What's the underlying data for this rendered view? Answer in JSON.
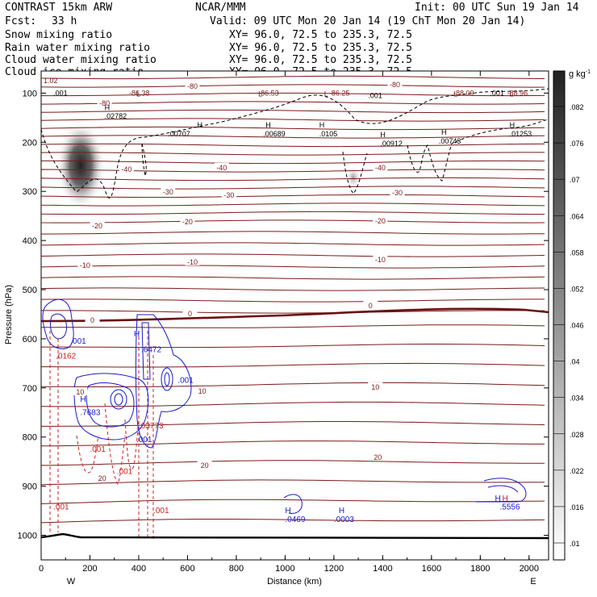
{
  "header": {
    "model": "CONTRAST 15km ARW",
    "center": "NCAR/MMM",
    "init": "Init: 00 UTC Sun 19 Jan 14",
    "fcst": "Fcst:",
    "fcst_hours": "33 h",
    "valid": "Valid: 09 UTC Mon 20 Jan 14 (19 ChT Mon 20 Jan 14)"
  },
  "fields": [
    {
      "name": "Snow mixing ratio",
      "xy": "XY=  96.0, 72.5 to 235.3, 72.5",
      "color": "#000000"
    },
    {
      "name": "Rain water mixing ratio",
      "xy": "XY=  96.0, 72.5 to 235.3, 72.5",
      "color": "#cc0000"
    },
    {
      "name": "Cloud water mixing ratio",
      "xy": "XY=  96.0, 72.5 to 235.3, 72.5",
      "color": "#0000cc"
    },
    {
      "name": "Cloud ice mixing ratio",
      "xy": "XY=  96.0, 72.5 to 235.3, 72.5",
      "color": "#000000"
    }
  ],
  "colors": {
    "temperature": "#7a1a1a",
    "rain": "#cc2222",
    "cloud_water": "#1a1acc",
    "ice": "#000000",
    "ground": "#000000"
  },
  "chart_data": {
    "type": "cross-section",
    "xlabel": "Distance (km)",
    "ylabel": "Pressure (hPa)",
    "xlim": [
      0,
      2080
    ],
    "ylim": [
      1050,
      55
    ],
    "x_ticks": [
      0,
      200,
      400,
      600,
      800,
      1000,
      1200,
      1400,
      1600,
      1800,
      2000
    ],
    "y_ticks": [
      100,
      200,
      300,
      400,
      500,
      600,
      700,
      800,
      900,
      1000
    ],
    "endpoints": {
      "left": "W",
      "right": "E"
    },
    "colorbar": {
      "unit": "g kg",
      "unit_exp": "-1",
      "values": [
        ".082",
        ".076",
        ".07",
        ".064",
        ".058",
        ".052",
        ".046",
        ".04",
        ".034",
        ".028",
        ".022",
        ".016",
        ".01"
      ]
    },
    "temperature_isotherms": [
      {
        "label": "-80",
        "at": [
          [
            260,
            128
          ],
          [
            620,
            107
          ],
          [
            1450,
            105
          ]
        ]
      },
      {
        "label": "-40",
        "at": [
          [
            350,
            210
          ],
          [
            740,
            208
          ],
          [
            1390,
            208
          ]
        ]
      },
      {
        "label": "-30",
        "at": [
          [
            520,
            238
          ],
          [
            770,
            242
          ],
          [
            1460,
            239
          ]
        ]
      },
      {
        "label": "-20",
        "at": [
          [
            230,
            280
          ],
          [
            600,
            275
          ],
          [
            1390,
            274
          ]
        ]
      },
      {
        "label": "-10",
        "at": [
          [
            180,
            329
          ],
          [
            620,
            325
          ],
          [
            1390,
            322
          ]
        ]
      },
      {
        "label": "0",
        "at": [
          [
            210,
            397
          ],
          [
            610,
            389
          ],
          [
            1350,
            379
          ]
        ]
      },
      {
        "label": "10",
        "at": [
          [
            160,
            486
          ],
          [
            660,
            485
          ],
          [
            1370,
            480
          ]
        ]
      },
      {
        "label": "20",
        "at": [
          [
            250,
            593
          ],
          [
            670,
            577
          ],
          [
            1380,
            567
          ]
        ]
      }
    ],
    "temperature_values": [
      {
        "label": "1.02",
        "x": 0,
        "p": 80
      },
      {
        "label": "-86.38",
        "x": 350,
        "p": 105
      },
      {
        "label": "-86.53",
        "x": 880,
        "p": 105
      },
      {
        "label": "-86.25",
        "x": 1170,
        "p": 105
      },
      {
        "label": "-88.09",
        "x": 1680,
        "p": 105
      },
      {
        "label": "-88.96",
        "x": 1900,
        "p": 105
      }
    ],
    "temperature_marks": [
      {
        "label": "L",
        "x": 390,
        "p": 90
      },
      {
        "label": "L",
        "x": 890,
        "p": 90
      },
      {
        "label": "L",
        "x": 1160,
        "p": 90
      },
      {
        "label": "L",
        "x": 1690,
        "p": 90
      },
      {
        "label": "L",
        "x": 1920,
        "p": 90
      }
    ],
    "ice_values": [
      {
        "label": ".001",
        "x": 40,
        "p": 105
      },
      {
        "label": ".001",
        "x": 1330,
        "p": 110
      },
      {
        "label": ".001",
        "x": 1830,
        "p": 105
      },
      {
        "label": ".02782",
        "x": 250,
        "p": 152
      },
      {
        "label": ".00707",
        "x": 510,
        "p": 188
      },
      {
        "label": ".00689",
        "x": 900,
        "p": 188
      },
      {
        "label": ".0105",
        "x": 1130,
        "p": 188
      },
      {
        "label": ".00912",
        "x": 1380,
        "p": 208
      },
      {
        "label": ".00743",
        "x": 1620,
        "p": 203
      },
      {
        "label": ".01253",
        "x": 1910,
        "p": 188
      }
    ],
    "ice_marks": [
      {
        "label": "H",
        "x": 260,
        "p": 135
      },
      {
        "label": "H",
        "x": 640,
        "p": 170
      },
      {
        "label": "H",
        "x": 920,
        "p": 170
      },
      {
        "label": "H",
        "x": 1140,
        "p": 170
      },
      {
        "label": "H",
        "x": 1390,
        "p": 190
      },
      {
        "label": "H",
        "x": 1640,
        "p": 185
      },
      {
        "label": "H",
        "x": 1920,
        "p": 170
      }
    ],
    "cloud_water_values": [
      {
        "label": ".001",
        "x": 120,
        "p": 610
      },
      {
        "label": ".6472",
        "x": 410,
        "p": 627
      },
      {
        "label": ".001",
        "x": 560,
        "p": 690
      },
      {
        "label": ".7683",
        "x": 160,
        "p": 755
      },
      {
        "label": ".001",
        "x": 390,
        "p": 810
      },
      {
        "label": ".0469",
        "x": 1000,
        "p": 973
      },
      {
        "label": ".0003",
        "x": 1200,
        "p": 973
      },
      {
        "label": ".5556",
        "x": 1880,
        "p": 947
      }
    ],
    "cloud_water_marks": [
      {
        "label": "H",
        "x": 380,
        "p": 595
      },
      {
        "label": "H",
        "x": 160,
        "p": 728
      },
      {
        "label": "H",
        "x": 1000,
        "p": 955
      },
      {
        "label": "H",
        "x": 1220,
        "p": 955
      },
      {
        "label": "H",
        "x": 1860,
        "p": 930
      }
    ],
    "rain_values": [
      {
        "label": ".0162",
        "x": 60,
        "p": 640
      },
      {
        "label": ".03773",
        "x": 400,
        "p": 782
      },
      {
        "label": ".001",
        "x": 200,
        "p": 830
      },
      {
        "label": ".001",
        "x": 310,
        "p": 875
      },
      {
        "label": ".001",
        "x": 50,
        "p": 947
      },
      {
        "label": ".001",
        "x": 460,
        "p": 955
      }
    ],
    "rain_marks": [
      {
        "label": "H",
        "x": 1890,
        "p": 930
      }
    ]
  }
}
